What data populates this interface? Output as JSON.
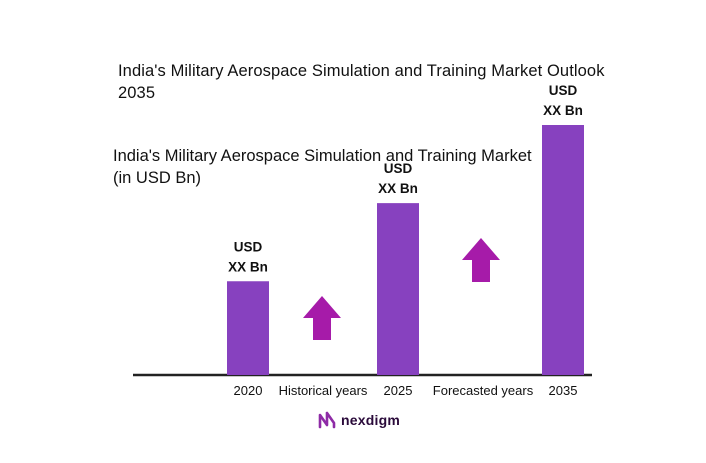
{
  "header": {
    "title": "India's Military Aerospace Simulation and Training Market Outlook 2035",
    "subtitle": "India's Military Aerospace Simulation and Training Market (in USD Bn)"
  },
  "chart_data": {
    "type": "bar",
    "categories": [
      "2020",
      "2025",
      "2035"
    ],
    "values": [
      0.6,
      1.1,
      1.6
    ],
    "value_labels": [
      [
        "USD",
        "XX Bn"
      ],
      [
        "USD",
        "XX Bn"
      ],
      [
        "USD",
        "XX Bn"
      ]
    ],
    "between_labels": [
      "Historical years",
      "Forecasted years"
    ],
    "ylim": [
      0,
      1.6
    ],
    "grid": false,
    "legend": "none",
    "colors": {
      "bar": "#8741bf",
      "arrow": "#a61ba9",
      "axis": "#222222"
    }
  },
  "brand": {
    "name": "nexdigm",
    "logo_color": "#8e2ba6"
  }
}
